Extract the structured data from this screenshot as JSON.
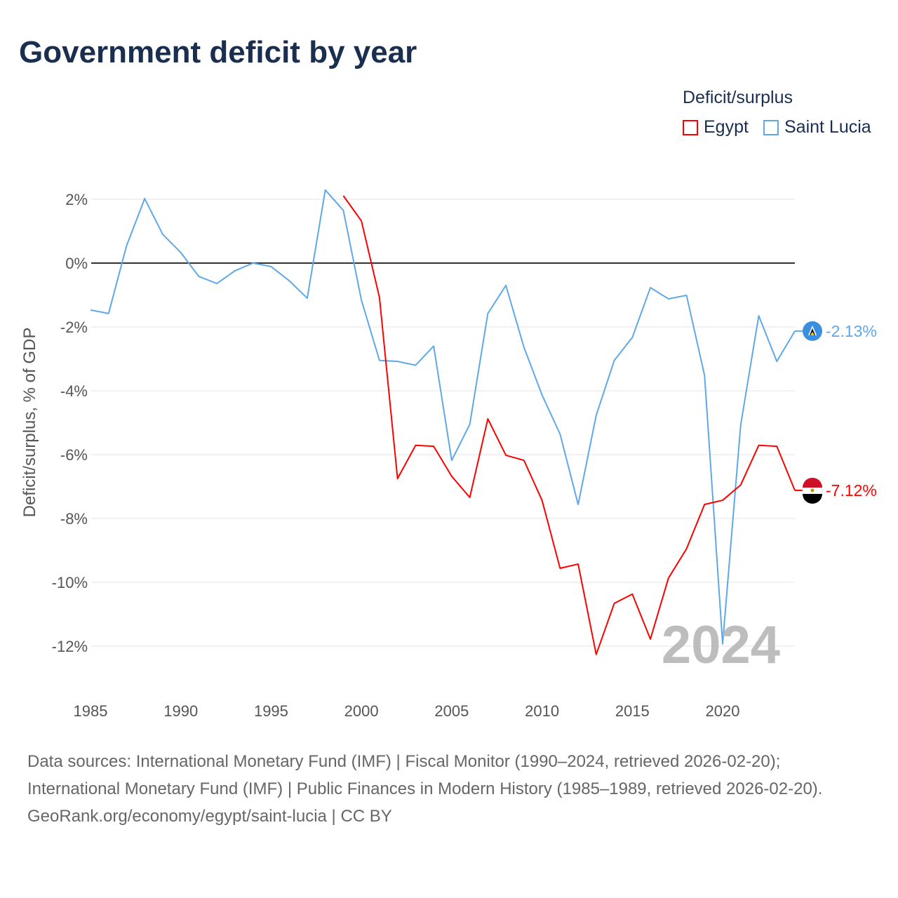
{
  "chart_data": {
    "type": "line",
    "title": "Government deficit by year",
    "ylabel": "Deficit/surplus, % of GDP",
    "xlabel": "",
    "legend_title": "Deficit/surplus",
    "legend_position": "top-right",
    "xlim": [
      1985,
      2024
    ],
    "ylim": [
      -13,
      3
    ],
    "x_ticks": [
      1985,
      1990,
      1995,
      2000,
      2005,
      2010,
      2015,
      2020
    ],
    "x_tick_labels": [
      "1985",
      "1990",
      "1995",
      "2000",
      "2005",
      "2010",
      "2015",
      "2020"
    ],
    "y_ticks": [
      2,
      0,
      -2,
      -4,
      -6,
      -8,
      -10,
      -12
    ],
    "y_tick_labels": [
      "2%",
      "0%",
      "-2%",
      "-4%",
      "-6%",
      "-8%",
      "-10%",
      "-12%"
    ],
    "year_watermark": "2024",
    "series": [
      {
        "name": "Egypt",
        "color": "#ff0000",
        "end_label": "-7.12%",
        "x": [
          1999,
          2000,
          2001,
          2002,
          2003,
          2004,
          2005,
          2006,
          2007,
          2008,
          2009,
          2010,
          2011,
          2012,
          2013,
          2014,
          2015,
          2016,
          2017,
          2018,
          2019,
          2020,
          2021,
          2022,
          2023,
          2024
        ],
        "values": [
          2.11,
          1.32,
          -1.08,
          -6.75,
          -5.71,
          -5.74,
          -6.68,
          -7.34,
          -4.88,
          -6.02,
          -6.18,
          -7.43,
          -9.56,
          -9.43,
          -12.26,
          -10.66,
          -10.37,
          -11.78,
          -9.87,
          -8.95,
          -7.56,
          -7.43,
          -6.95,
          -5.71,
          -5.74,
          -7.12
        ]
      },
      {
        "name": "Saint Lucia",
        "color": "#5fa8e8",
        "end_label": "-2.13%",
        "x": [
          1985,
          1986,
          1987,
          1988,
          1989,
          1990,
          1991,
          1992,
          1993,
          1994,
          1995,
          1996,
          1997,
          1998,
          1999,
          2000,
          2001,
          2002,
          2003,
          2004,
          2005,
          2006,
          2007,
          2008,
          2009,
          2010,
          2011,
          2012,
          2013,
          2014,
          2015,
          2016,
          2017,
          2018,
          2019,
          2020,
          2021,
          2022,
          2023,
          2024
        ],
        "values": [
          -1.47,
          -1.58,
          0.55,
          2.02,
          0.9,
          0.33,
          -0.42,
          -0.64,
          -0.24,
          0,
          -0.11,
          -0.55,
          -1.1,
          2.29,
          1.65,
          -1.16,
          -3.05,
          -3.08,
          -3.2,
          -2.6,
          -6.18,
          -5.05,
          -1.58,
          -0.7,
          -2.64,
          -4.13,
          -5.36,
          -7.56,
          -4.77,
          -3.05,
          -2.33,
          -0.77,
          -1.12,
          -1.01,
          -3.52,
          -11.93,
          -5.07,
          -1.65,
          -3.08,
          -2.13
        ]
      }
    ]
  },
  "footer": {
    "source": "Data sources: International Monetary Fund (IMF) | Fiscal Monitor (1990–2024, retrieved 2026-02-20); International Monetary Fund (IMF) | Public Finances in Modern History (1985–1989, retrieved 2026-02-20).",
    "credit": "GeoRank.org/economy/egypt/saint-lucia | CC BY"
  }
}
